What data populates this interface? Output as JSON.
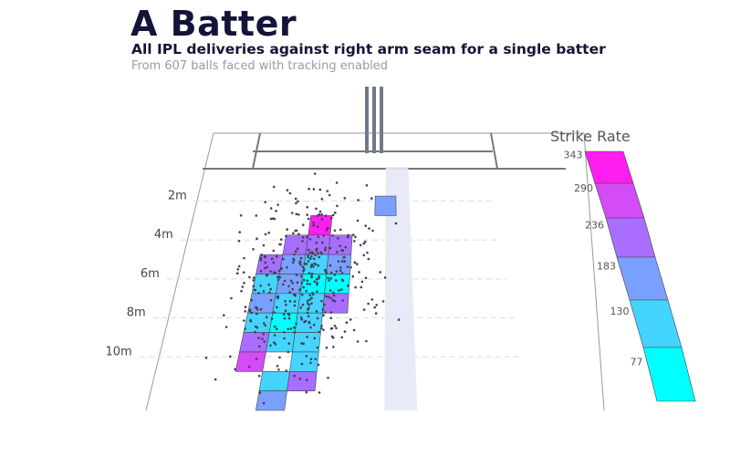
{
  "header": {
    "title": "A Batter",
    "subtitle": "All IPL deliveries against right arm seam for a single batter",
    "note": "From 607 balls faced with tracking enabled"
  },
  "colors": {
    "background": "#ffffff",
    "pitch_line": "#777777",
    "stumps": "#6e7a88",
    "stump_band": "#e6e8f6",
    "dot": "#404050",
    "gridline": "#d8dde3",
    "scale": [
      "#00ffff",
      "#44d4ff",
      "#7aa0ff",
      "#aa6cff",
      "#d44cf6",
      "#ff1ef0"
    ]
  },
  "chart_data": {
    "type": "heatmap",
    "title": "A Batter",
    "subtitle": "All IPL deliveries against right arm seam for a single batter",
    "balls_faced": 607,
    "y_axis": {
      "ticks": [
        "2m",
        "4m",
        "6m",
        "8m",
        "10m"
      ],
      "values": [
        2,
        4,
        6,
        8,
        10
      ]
    },
    "legend": {
      "title": "Strike Rate",
      "ticks": [
        343,
        290,
        236,
        183,
        130,
        77
      ],
      "range": [
        77,
        343
      ],
      "placement": "right"
    },
    "cells": [
      {
        "line": 2,
        "length": 2.25,
        "sr": 183
      },
      {
        "line": -1,
        "length": 3.25,
        "sr": 343
      },
      {
        "line": -2,
        "length": 4.25,
        "sr": 236
      },
      {
        "line": -1,
        "length": 4.25,
        "sr": 236
      },
      {
        "line": 0,
        "length": 4.25,
        "sr": 236
      },
      {
        "line": -3,
        "length": 5.25,
        "sr": 236
      },
      {
        "line": -2,
        "length": 5.25,
        "sr": 183
      },
      {
        "line": -1,
        "length": 5.25,
        "sr": 130
      },
      {
        "line": 0,
        "length": 5.25,
        "sr": 183
      },
      {
        "line": -3,
        "length": 6.25,
        "sr": 130
      },
      {
        "line": -2,
        "length": 6.25,
        "sr": 183
      },
      {
        "line": -1,
        "length": 6.25,
        "sr": 77
      },
      {
        "line": 0,
        "length": 6.25,
        "sr": 77
      },
      {
        "line": -3,
        "length": 7.25,
        "sr": 183
      },
      {
        "line": -2,
        "length": 7.25,
        "sr": 130
      },
      {
        "line": -1,
        "length": 7.25,
        "sr": 130
      },
      {
        "line": 0,
        "length": 7.25,
        "sr": 236
      },
      {
        "line": -3,
        "length": 8.25,
        "sr": 130
      },
      {
        "line": -2,
        "length": 8.25,
        "sr": 77
      },
      {
        "line": -1,
        "length": 8.25,
        "sr": 130
      },
      {
        "line": -3,
        "length": 9.25,
        "sr": 236
      },
      {
        "line": -2,
        "length": 9.25,
        "sr": 130
      },
      {
        "line": -1,
        "length": 9.25,
        "sr": 130
      },
      {
        "line": -3,
        "length": 10.25,
        "sr": 290
      },
      {
        "line": -1,
        "length": 10.25,
        "sr": 130
      },
      {
        "line": -2,
        "length": 11.25,
        "sr": 130
      },
      {
        "line": -1,
        "length": 11.25,
        "sr": 236
      },
      {
        "line": -2,
        "length": 12.25,
        "sr": 183
      }
    ]
  }
}
